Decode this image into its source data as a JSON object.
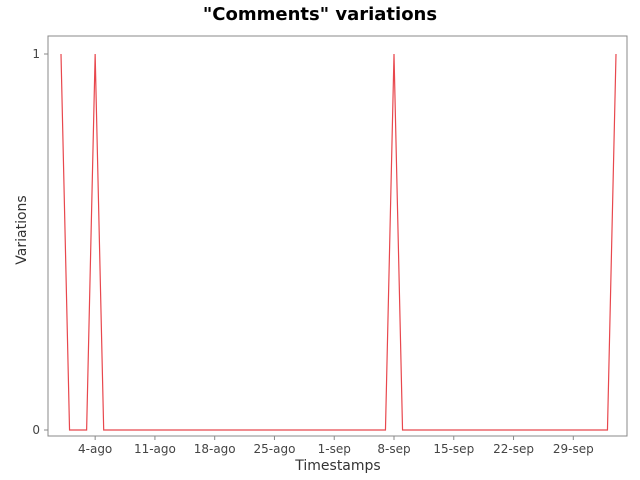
{
  "chart_data": {
    "type": "line",
    "title": "\"Comments\" variations",
    "xlabel": "Timestamps",
    "ylabel": "Variations",
    "x_tick_labels": [
      "4-ago",
      "11-ago",
      "18-ago",
      "25-ago",
      "1-sep",
      "8-sep",
      "15-sep",
      "22-sep",
      "29-sep"
    ],
    "y_tick_labels": [
      "0",
      "1"
    ],
    "ylim": [
      0,
      1
    ],
    "grid": false,
    "legend": "none",
    "series_color": "#e8474d",
    "series": [
      {
        "x": [
          "2014-07-31",
          "2014-08-01",
          "2014-08-02",
          "2014-08-03",
          "2014-08-04",
          "2014-08-05",
          "2014-08-06",
          "2014-08-07",
          "2014-09-05",
          "2014-09-06",
          "2014-09-07",
          "2014-09-08",
          "2014-09-09",
          "2014-09-10",
          "2014-09-30",
          "2014-10-01",
          "2014-10-02",
          "2014-10-03",
          "2014-10-04"
        ],
        "values": [
          1,
          0,
          0,
          0,
          1,
          0,
          0,
          0,
          0,
          0,
          0,
          1,
          0,
          0,
          0,
          0,
          0,
          0,
          1
        ]
      }
    ]
  }
}
